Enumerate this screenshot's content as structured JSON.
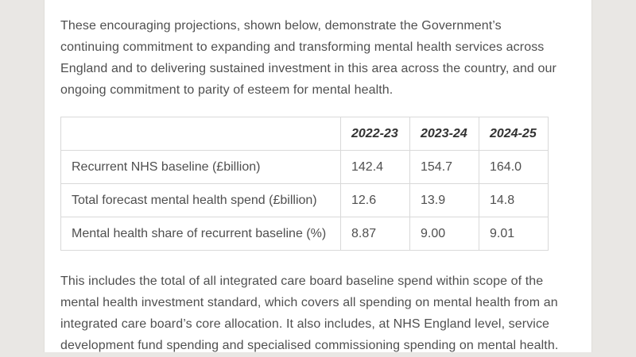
{
  "page": {
    "background_color": "#e9e7e4",
    "card_color": "#ffffff",
    "text_color": "#4f4f4f",
    "table_border_color": "#d9d9d9"
  },
  "paragraphs": {
    "intro": "These encouraging projections, shown below, demonstrate the Government’s continuing commitment to expanding and transforming mental health services across England and to delivering sustained investment in this area across the country, and our ongoing commitment to parity of esteem for mental health.",
    "outro": "This includes the total of all integrated care board baseline spend within scope of the mental health investment standard, which covers all spending on mental health from an integrated care board’s core allocation. It also includes, at NHS England level, service development fund spending and specialised commissioning spending on mental health."
  },
  "table": {
    "columns": [
      "",
      "2022-23",
      "2023-24",
      "2024-25"
    ],
    "rows": [
      {
        "label": "Recurrent NHS baseline (£billion)",
        "values": [
          "142.4",
          "154.7",
          "164.0"
        ]
      },
      {
        "label": "Total forecast mental health spend (£billion)",
        "values": [
          "12.6",
          "13.9",
          "14.8"
        ]
      },
      {
        "label": "Mental health share of recurrent baseline (%)",
        "values": [
          "8.87",
          "9.00",
          "9.01"
        ]
      }
    ]
  }
}
